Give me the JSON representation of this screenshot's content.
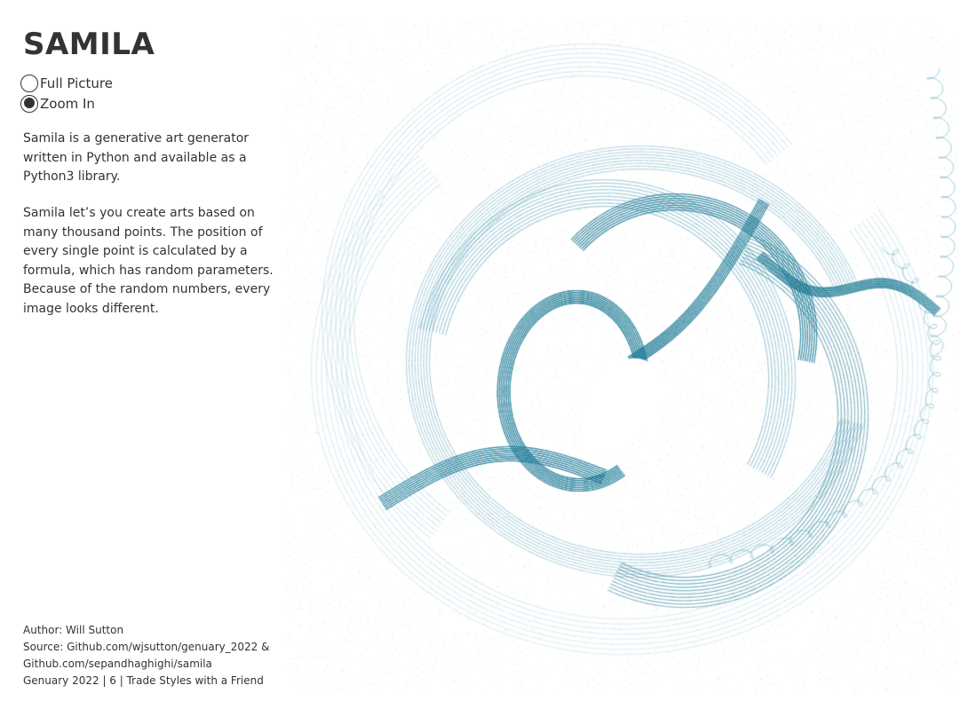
{
  "page": {
    "title": "SAMILA"
  },
  "view_toggle": {
    "options": [
      {
        "label": "Full Picture",
        "selected": false
      },
      {
        "label": "Zoom In",
        "selected": true
      }
    ]
  },
  "description": {
    "paragraph1": "Samila is a generative art generator written in Python and available as a Python3 library.",
    "paragraph2": "Samila let’s you create arts based on many thousand points. The position of every single point is calculated by a formula, which has random parameters. Because of the random numbers, every image looks different."
  },
  "footer": {
    "author": "Author: Will Sutton",
    "source_line1": "Source: Github.com/wjsutton/genuary_2022 &",
    "source_line2": "Github.com/sepandhaghighi/samila",
    "genuary": "Genuary 2022 | 6 | Trade Styles with a Friend"
  },
  "colors": {
    "text": "#333333",
    "art_dark": "#1b7a96",
    "art_mid": "#5ba6bd",
    "art_light": "#a9d2de",
    "background": "#ffffff"
  },
  "icons": {
    "radio_unselected": "radio-empty-icon",
    "radio_selected": "radio-filled-icon"
  }
}
